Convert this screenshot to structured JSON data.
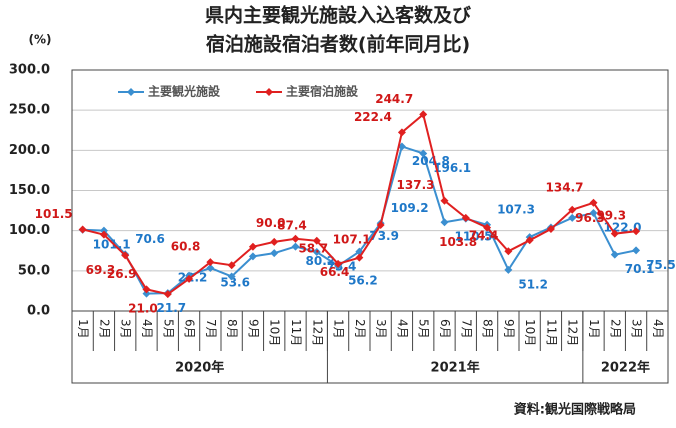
{
  "chart_data": {
    "type": "line",
    "title": [
      "県内主要観光施設入込客数及び",
      "宿泊施設宿泊者数(前年同月比)"
    ],
    "y_unit": "(%)",
    "source": "資料:観光国際戦略局",
    "year_groups": [
      {
        "label": "2020年",
        "months": [
          "1月",
          "2月",
          "3月",
          "4月",
          "5月",
          "6月",
          "7月",
          "8月",
          "9月",
          "10月",
          "11月",
          "12月"
        ]
      },
      {
        "label": "2021年",
        "months": [
          "1月",
          "2月",
          "3月",
          "4月",
          "5月",
          "6月",
          "7月",
          "8月",
          "9月",
          "10月",
          "11月",
          "12月"
        ]
      },
      {
        "label": "2022年",
        "months": [
          "1月",
          "2月",
          "3月",
          "4月"
        ]
      }
    ],
    "ylim": [
      0,
      300
    ],
    "yticks": [
      {
        "value": 0,
        "label": "0.0"
      },
      {
        "value": 50,
        "label": "50.0"
      },
      {
        "value": 100,
        "label": "100.0"
      },
      {
        "value": 150,
        "label": "150.0"
      },
      {
        "value": 200,
        "label": "200.0"
      },
      {
        "value": 250,
        "label": "250.0"
      },
      {
        "value": 300,
        "label": "300.0"
      }
    ],
    "grid": true,
    "series": [
      {
        "name": "主要観光施設",
        "color": "#3b8fd0",
        "values": [
          101.1,
          100,
          70.6,
          21.7,
          22.2,
          44,
          53.6,
          43,
          68,
          72,
          80.2,
          73.4,
          56.2,
          73.9,
          109.2,
          204.8,
          196.1,
          110.5,
          115,
          107.3,
          51.2,
          92,
          104,
          116,
          122.0,
          70.1,
          75.5,
          null
        ],
        "value_labels": [
          "101.1",
          null,
          "70.6",
          "21.7",
          "22.2",
          null,
          "53.6",
          null,
          null,
          null,
          "80.2",
          "73.4",
          "56.2",
          "73.9",
          "109.2",
          "204.8",
          "196.1",
          "110.5",
          null,
          "107.3",
          "51.2",
          null,
          null,
          null,
          "122.0",
          "70.1",
          "75.5",
          null
        ]
      },
      {
        "name": "主要宿泊施設",
        "color": "#e02020",
        "values": [
          101.5,
          95,
          69.3,
          26.9,
          21.0,
          40,
          60.8,
          57,
          80,
          86,
          90.0,
          87.4,
          58.7,
          66.4,
          107.1,
          222.4,
          244.7,
          137.3,
          116,
          103.8,
          74.4,
          88,
          102,
          126,
          134.7,
          96.3,
          99.3,
          null
        ],
        "value_labels": [
          "101.5",
          null,
          "69.3",
          "26.9",
          "21.0",
          null,
          "60.8",
          null,
          null,
          null,
          "90.0",
          "87.4",
          "58.7",
          "66.4",
          "107.1",
          "222.4",
          "244.7",
          "137.3",
          null,
          "103.8",
          "74.4",
          null,
          null,
          null,
          "134.7",
          "96.3",
          "99.3",
          null
        ]
      }
    ]
  }
}
